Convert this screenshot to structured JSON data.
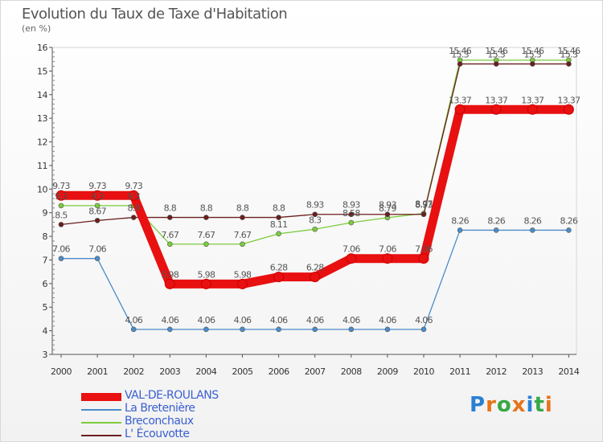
{
  "header": {
    "title": "Evolution du Taux de Taxe d'Habitation",
    "unit": "(en %)"
  },
  "logo": {
    "text": "Proxiti",
    "letters": [
      "P",
      "r",
      "o",
      "x",
      "i",
      "t",
      "i"
    ],
    "colors": [
      "#2a7fd4",
      "#e8731a",
      "#37a845",
      "#e8731a",
      "#2a7fd4",
      "#37a845",
      "#e8731a"
    ]
  },
  "chart_data": {
    "type": "line",
    "title": "Evolution du Taux de Taxe d'Habitation",
    "ylabel": "(en %)",
    "xlabel": "",
    "ylim": [
      3,
      16
    ],
    "yticks": [
      3,
      4,
      5,
      6,
      7,
      8,
      9,
      10,
      11,
      12,
      13,
      14,
      15,
      16
    ],
    "grid": false,
    "legend_position": "bottom-left",
    "categories": [
      "2000",
      "2001",
      "2002",
      "2003",
      "2004",
      "2005",
      "2006",
      "2007",
      "2008",
      "2009",
      "2010",
      "2011",
      "2012",
      "2013",
      "2014"
    ],
    "series": [
      {
        "name": "VAL-DE-ROULANS",
        "color": "#e81010",
        "emphasis": true,
        "values": [
          9.73,
          9.73,
          9.73,
          5.98,
          5.98,
          5.98,
          6.28,
          6.28,
          7.06,
          7.06,
          7.06,
          13.37,
          13.37,
          13.37,
          13.37
        ],
        "labels": [
          "9.73",
          "9.73",
          "9.73",
          "5.98",
          "5.98",
          "5.98",
          "6.28",
          "6.28",
          "7.06",
          "7.06",
          "7.06",
          "13.37",
          "13.37",
          "13.37",
          "13.37"
        ]
      },
      {
        "name": "La Bretenière",
        "color": "#4a8cc8",
        "values": [
          7.06,
          7.06,
          4.06,
          4.06,
          4.06,
          4.06,
          4.06,
          4.06,
          4.06,
          4.06,
          4.06,
          8.26,
          8.26,
          8.26,
          8.26
        ],
        "labels": [
          "7.06",
          "7.06",
          "4.06",
          "4.06",
          "4.06",
          "4.06",
          "4.06",
          "4.06",
          "4.06",
          "4.06",
          "4.06",
          "8.26",
          "8.26",
          "8.26",
          "8.26"
        ]
      },
      {
        "name": "Breconchaux",
        "color": "#7ccc3c",
        "values": [
          9.3,
          9.3,
          9.3,
          7.67,
          7.67,
          7.67,
          8.11,
          8.3,
          8.58,
          8.79,
          8.97,
          15.46,
          15.46,
          15.46,
          15.46
        ],
        "labels": [
          "9.3",
          "9.3",
          "9.3",
          "7.67",
          "7.67",
          "7.67",
          "8.11",
          "8.3",
          "8.58",
          "8.79",
          "8.97",
          "15.46",
          "15.46",
          "15.46",
          "15.46"
        ]
      },
      {
        "name": "L' Écouvotte",
        "color": "#6b1e1e",
        "values": [
          8.5,
          8.67,
          8.8,
          8.8,
          8.8,
          8.8,
          8.8,
          8.93,
          8.93,
          8.93,
          8.93,
          15.3,
          15.3,
          15.3,
          15.3
        ],
        "labels": [
          "8.5",
          "8.67",
          "8.8",
          "8.8",
          "8.8",
          "8.8",
          "8.8",
          "8.93",
          "8.93",
          "8.93",
          "8.93",
          "15.3",
          "15.3",
          "15.3",
          "15.3"
        ]
      }
    ]
  }
}
